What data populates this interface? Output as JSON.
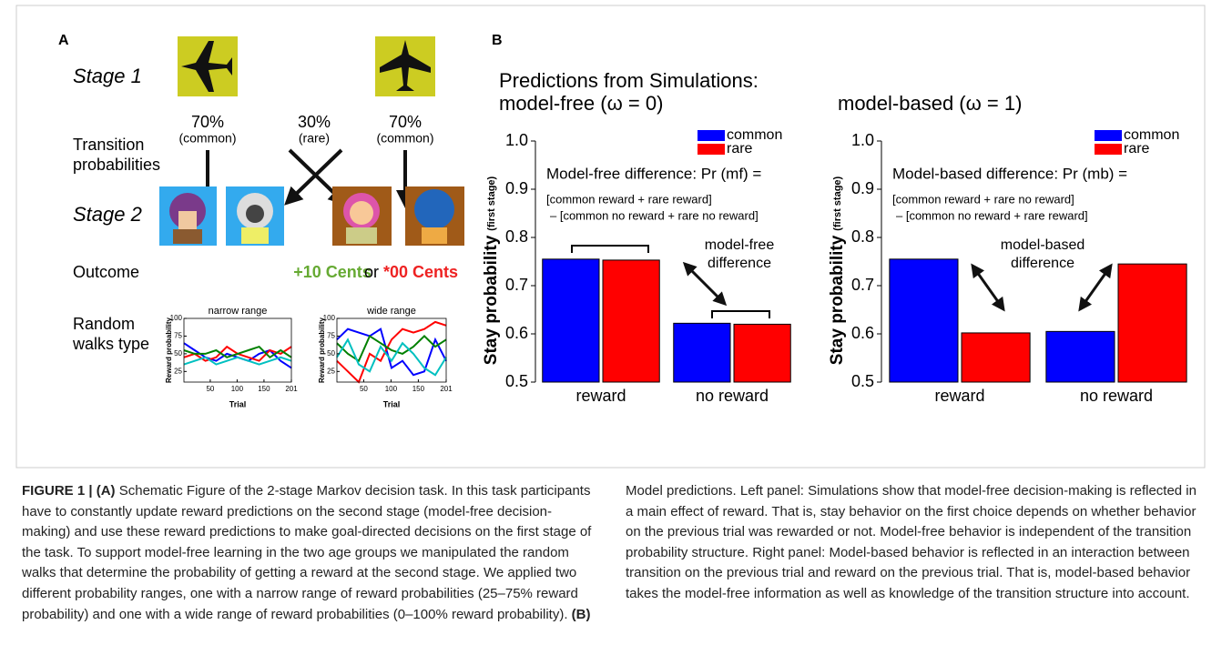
{
  "panel_a": {
    "label": "A",
    "stage1": "Stage 1",
    "transitions": [
      {
        "pct": "70%",
        "kind": "(common)"
      },
      {
        "pct": "30%",
        "kind": "(rare)"
      },
      {
        "pct": "70%",
        "kind": "(common)"
      }
    ],
    "transition_label": [
      "Transition",
      "probabilities"
    ],
    "stage2": "Stage 2",
    "outcome_label": "Outcome",
    "outcome_win": "+10 Cents",
    "outcome_or": "or",
    "outcome_loss": "*00 Cents",
    "random_walks_label": [
      "Random",
      "walks type"
    ]
  },
  "panel_b": {
    "label": "B",
    "heading": "Predictions from Simulations:"
  },
  "chart_data": [
    {
      "type": "line",
      "title": "narrow range",
      "xlabel": "Trial",
      "ylabel": "Reward probability",
      "x": [
        1,
        21,
        41,
        61,
        81,
        101,
        121,
        141,
        161,
        181,
        201
      ],
      "xlim": [
        1,
        201
      ],
      "xticks": [
        50,
        100,
        150,
        201
      ],
      "ylim": [
        10,
        100
      ],
      "yticks": [
        25,
        50,
        75,
        100
      ],
      "series": [
        {
          "color": "#0000ff",
          "values": [
            65,
            55,
            45,
            40,
            50,
            45,
            40,
            50,
            55,
            40,
            30
          ]
        },
        {
          "color": "#ff0000",
          "values": [
            45,
            50,
            40,
            45,
            60,
            50,
            45,
            40,
            55,
            50,
            60
          ]
        },
        {
          "color": "#008000",
          "values": [
            55,
            50,
            50,
            55,
            45,
            50,
            55,
            60,
            45,
            55,
            45
          ]
        },
        {
          "color": "#00c0c0",
          "values": [
            35,
            40,
            45,
            35,
            40,
            45,
            40,
            35,
            40,
            45,
            40
          ]
        }
      ]
    },
    {
      "type": "line",
      "title": "wide range",
      "xlabel": "Trial",
      "ylabel": "Reward probability",
      "x": [
        1,
        21,
        41,
        61,
        81,
        101,
        121,
        141,
        161,
        181,
        201
      ],
      "xlim": [
        1,
        201
      ],
      "xticks": [
        50,
        100,
        150,
        201
      ],
      "ylim": [
        10,
        100
      ],
      "yticks": [
        25,
        50,
        75,
        100
      ],
      "series": [
        {
          "color": "#0000ff",
          "values": [
            70,
            85,
            80,
            75,
            85,
            30,
            40,
            20,
            25,
            70,
            40
          ]
        },
        {
          "color": "#ff0000",
          "values": [
            40,
            25,
            10,
            50,
            40,
            70,
            85,
            80,
            85,
            95,
            90
          ]
        },
        {
          "color": "#008000",
          "values": [
            65,
            50,
            40,
            75,
            65,
            55,
            50,
            60,
            75,
            60,
            70
          ]
        },
        {
          "color": "#00c0c0",
          "values": [
            45,
            70,
            35,
            25,
            60,
            40,
            65,
            50,
            30,
            20,
            45
          ]
        }
      ]
    },
    {
      "type": "bar",
      "title": "model-free (ω = 0)",
      "ylabel": "Stay probability",
      "ylabel_note": "(first stage)",
      "categories": [
        "reward",
        "no reward"
      ],
      "series": [
        {
          "name": "common",
          "color": "#0000ff",
          "values": [
            0.755,
            0.622
          ]
        },
        {
          "name": "rare",
          "color": "#ff0000",
          "values": [
            0.753,
            0.62
          ]
        }
      ],
      "ylim": [
        0.5,
        1.0
      ],
      "yticks": [
        0.5,
        0.6,
        0.7,
        0.8,
        0.9,
        {
          "value": 1.0,
          "label": "1.0"
        }
      ],
      "legend": "upper right",
      "annotation": "Model-free difference: Pr (mf) =",
      "formula": [
        "[common reward + rare reward]",
        "– [common no reward + rare no reward]"
      ],
      "difference_label": [
        "model-free",
        "difference"
      ]
    },
    {
      "type": "bar",
      "title": "model-based (ω = 1)",
      "ylabel": "Stay probability",
      "ylabel_note": "(first stage)",
      "categories": [
        "reward",
        "no reward"
      ],
      "series": [
        {
          "name": "common",
          "color": "#0000ff",
          "values": [
            0.755,
            0.605
          ]
        },
        {
          "name": "rare",
          "color": "#ff0000",
          "values": [
            0.602,
            0.745
          ]
        }
      ],
      "ylim": [
        0.5,
        1.0
      ],
      "yticks": [
        0.5,
        0.6,
        0.7,
        0.8,
        0.9,
        {
          "value": 1.0,
          "label": "1.0"
        }
      ],
      "legend": "upper right",
      "annotation": "Model-based difference: Pr (mb) =",
      "formula": [
        "[common reward + rare no reward]",
        "– [common no reward + rare reward]"
      ],
      "difference_label": [
        "model-based",
        "difference"
      ]
    }
  ],
  "caption": {
    "figure_label": "FIGURE 1 |",
    "a_label": "(A)",
    "a_text": "Schematic Figure of the 2-stage Markov decision task. In this task participants have to constantly update reward predictions on the second stage (model-free decision-making) and use these reward predictions to make goal-directed decisions on the first stage of the task. To support model-free learning in the two age groups we manipulated the random walks that determine the probability of getting a reward at the second stage. We applied two different probability ranges, one with a narrow range of reward probabilities (25–75% reward probability) and one with a wide range of reward probabilities (0–100% reward probability).",
    "b_label": "(B)",
    "b_text": "Model predictions. Left panel: Simulations show that model-free decision-making is reflected in a main effect of reward. That is, stay behavior on the first choice depends on whether behavior on the previous trial was rewarded or not. Model-free behavior is independent of the transition probability structure. Right panel: Model-based behavior is reflected in an interaction between transition on the previous trial and reward on the previous trial. That is, model-based behavior takes the model-free information as well as knowledge of the transition structure into account."
  }
}
